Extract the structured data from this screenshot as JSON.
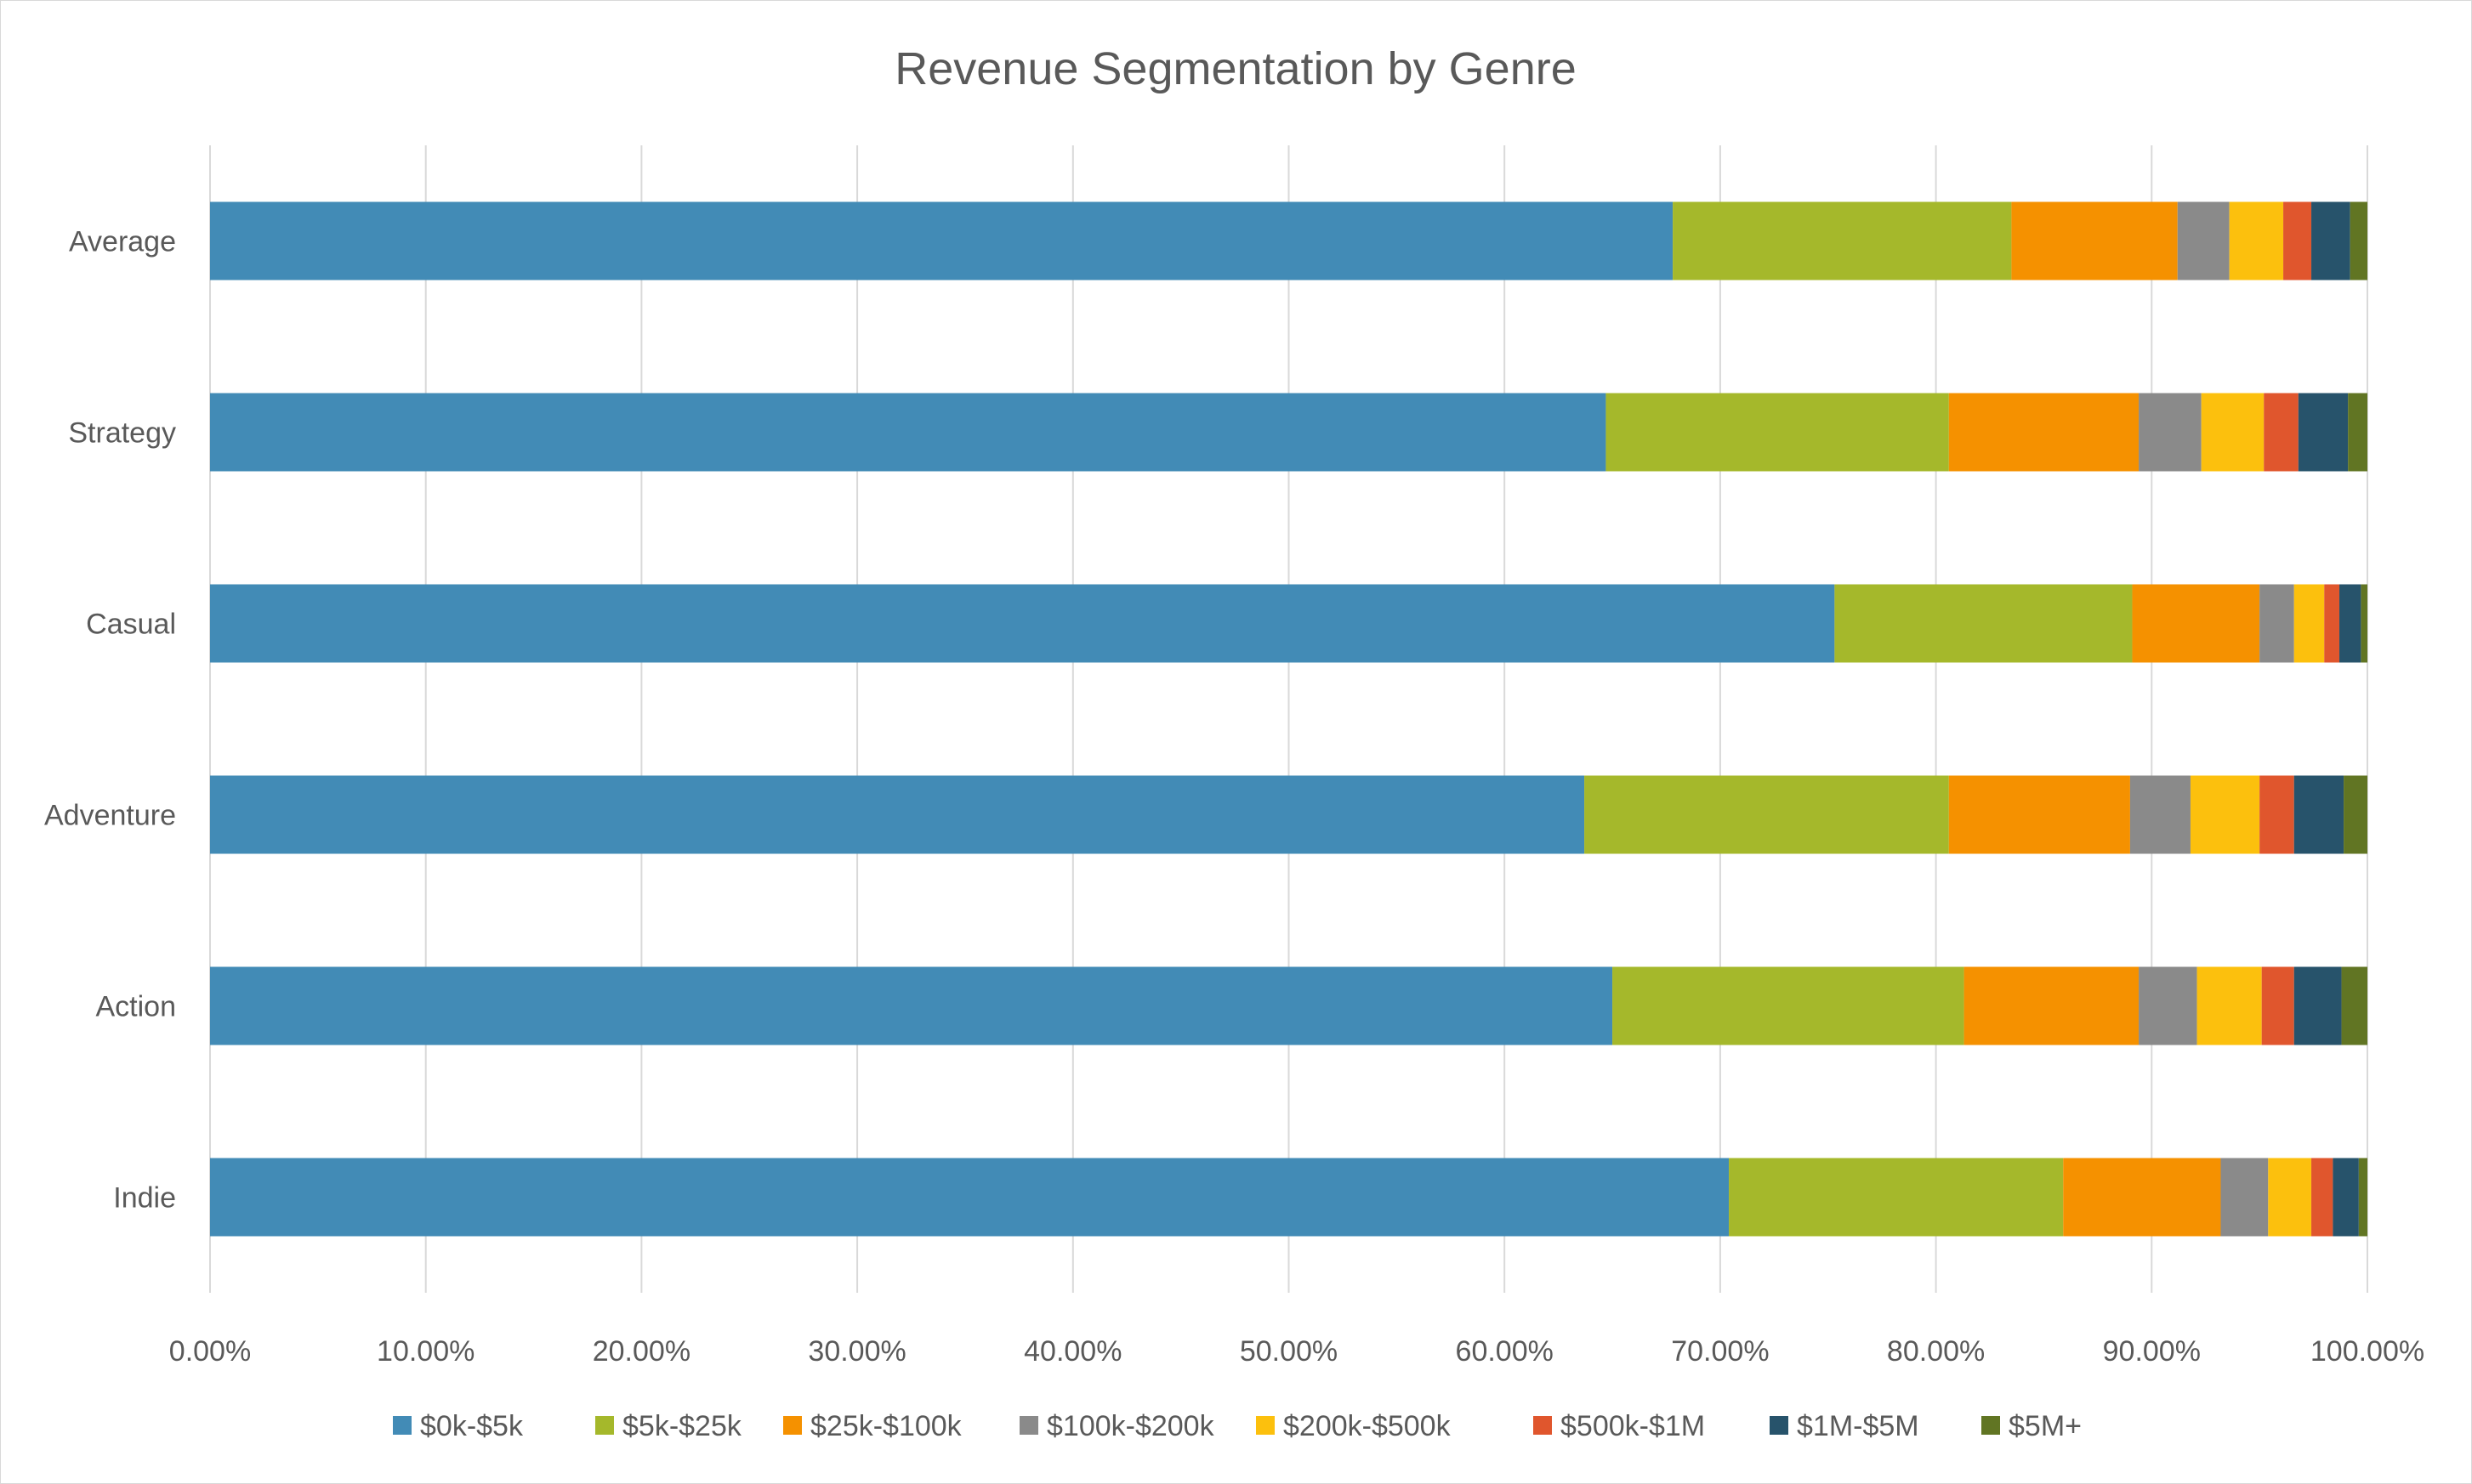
{
  "chart_data": {
    "type": "bar",
    "orientation": "horizontal",
    "stacked": "100%",
    "title": "Revenue Segmentation by Genre",
    "xlabel": "",
    "ylabel": "",
    "xlim": [
      0,
      100
    ],
    "x_ticks": [
      "0.00%",
      "10.00%",
      "20.00%",
      "30.00%",
      "40.00%",
      "50.00%",
      "60.00%",
      "70.00%",
      "80.00%",
      "90.00%",
      "100.00%"
    ],
    "grid": "vertical",
    "legend_position": "bottom",
    "categories": [
      "Average",
      "Strategy",
      "Casual",
      "Adventure",
      "Action",
      "Indie"
    ],
    "series": [
      {
        "name": "$0k-$5k",
        "color": "#428bb6",
        "values": [
          67.8,
          64.7,
          75.3,
          63.7,
          65.0,
          70.4
        ]
      },
      {
        "name": "$5k-$25k",
        "color": "#a5b82b",
        "values": [
          15.7,
          15.9,
          13.8,
          16.9,
          16.3,
          15.5
        ]
      },
      {
        "name": "$25k-$100k",
        "color": "#f59100",
        "values": [
          7.7,
          8.8,
          5.9,
          8.4,
          8.1,
          7.3
        ]
      },
      {
        "name": "$100k-$200k",
        "color": "#8a8a8a",
        "values": [
          2.4,
          2.9,
          1.6,
          2.8,
          2.7,
          2.2
        ]
      },
      {
        "name": "$200k-$500k",
        "color": "#fcc00d",
        "values": [
          2.5,
          2.9,
          1.4,
          3.2,
          3.0,
          2.0
        ]
      },
      {
        "name": "$500k-$1M",
        "color": "#e0562d",
        "values": [
          1.3,
          1.6,
          0.7,
          1.6,
          1.5,
          1.0
        ]
      },
      {
        "name": "$1M-$5M",
        "color": "#27536b",
        "values": [
          1.8,
          2.3,
          1.0,
          2.3,
          2.2,
          1.2
        ]
      },
      {
        "name": "$5M+",
        "color": "#617523",
        "values": [
          0.8,
          0.9,
          0.3,
          1.1,
          1.2,
          0.4
        ]
      }
    ]
  }
}
